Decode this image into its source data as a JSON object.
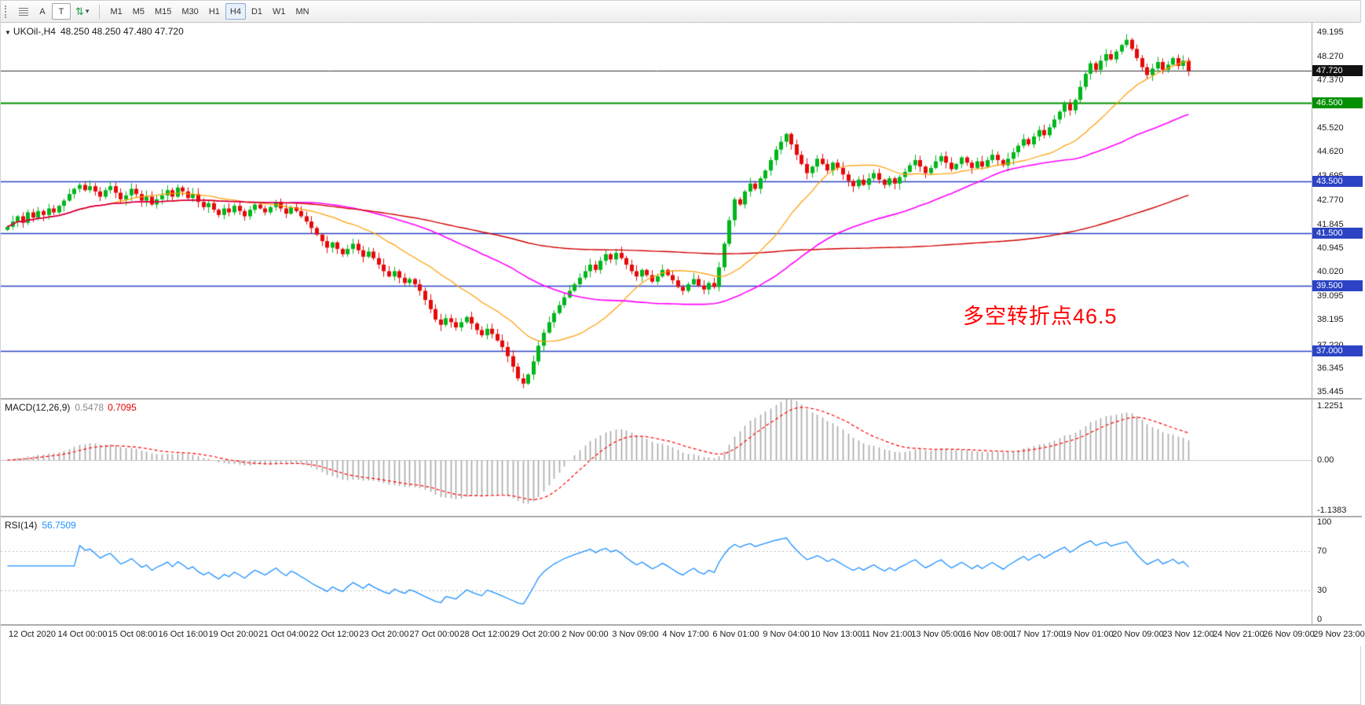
{
  "toolbar": {
    "tools": [
      {
        "label": "A"
      },
      {
        "label": "T"
      }
    ],
    "timeframes": [
      {
        "label": "M1",
        "active": false
      },
      {
        "label": "M5",
        "active": false
      },
      {
        "label": "M15",
        "active": false
      },
      {
        "label": "M30",
        "active": false
      },
      {
        "label": "H1",
        "active": false
      },
      {
        "label": "H4",
        "active": true
      },
      {
        "label": "D1",
        "active": false
      },
      {
        "label": "W1",
        "active": false
      },
      {
        "label": "MN",
        "active": false
      }
    ]
  },
  "chart": {
    "symbol_tf": "UKOil-,H4",
    "ohlc": "48.250 48.250 47.480 47.720"
  },
  "chart_data": {
    "type": "candlestick",
    "symbol": "UKOil",
    "timeframe": "H4",
    "title": "UKOil-,H4 48.250 48.250 47.480 47.720",
    "price_range": [
      35.2,
      49.55
    ],
    "current_price": 47.72,
    "current_price_label": "47.720",
    "current_price_color": "#333333",
    "colors": {
      "up": "#00b61b",
      "down": "#e60a0a"
    },
    "closes": [
      41.75,
      41.95,
      42.15,
      41.9,
      42.3,
      42.1,
      42.35,
      42.2,
      42.45,
      42.3,
      42.55,
      42.75,
      43.0,
      43.2,
      43.35,
      43.15,
      43.3,
      43.1,
      42.9,
      43.15,
      43.3,
      43.05,
      42.8,
      42.95,
      43.2,
      43.0,
      42.75,
      42.9,
      42.6,
      42.8,
      42.95,
      43.15,
      42.9,
      43.25,
      43.1,
      42.85,
      43.0,
      42.7,
      42.5,
      42.65,
      42.4,
      42.2,
      42.45,
      42.3,
      42.55,
      42.35,
      42.15,
      42.4,
      42.6,
      42.45,
      42.3,
      42.5,
      42.7,
      42.45,
      42.25,
      42.5,
      42.35,
      42.15,
      41.95,
      41.7,
      41.45,
      41.2,
      40.95,
      41.15,
      40.9,
      40.7,
      40.9,
      41.1,
      40.85,
      40.6,
      40.8,
      40.55,
      40.3,
      40.05,
      39.85,
      40.05,
      39.8,
      39.6,
      39.75,
      39.55,
      39.3,
      38.95,
      38.6,
      38.2,
      38.0,
      38.25,
      38.1,
      37.9,
      38.1,
      38.3,
      38.05,
      37.8,
      37.6,
      37.85,
      37.65,
      37.4,
      37.15,
      36.8,
      36.4,
      35.95,
      35.75,
      36.1,
      36.6,
      37.2,
      37.7,
      38.1,
      38.45,
      38.75,
      39.05,
      39.3,
      39.55,
      39.8,
      40.05,
      40.3,
      40.1,
      40.45,
      40.7,
      40.5,
      40.75,
      40.55,
      40.3,
      40.05,
      39.85,
      40.1,
      39.9,
      39.65,
      39.85,
      40.1,
      39.9,
      39.7,
      39.45,
      39.3,
      39.55,
      39.75,
      39.5,
      39.35,
      39.6,
      39.45,
      40.2,
      41.1,
      42.0,
      42.8,
      42.6,
      43.1,
      43.4,
      43.2,
      43.6,
      43.9,
      44.3,
      44.7,
      45.0,
      45.3,
      44.9,
      44.5,
      44.15,
      43.8,
      44.05,
      44.35,
      44.15,
      43.9,
      44.2,
      44.0,
      43.75,
      43.5,
      43.3,
      43.55,
      43.35,
      43.6,
      43.8,
      43.55,
      43.35,
      43.6,
      43.4,
      43.65,
      43.85,
      44.1,
      44.3,
      44.05,
      43.8,
      44.0,
      44.25,
      44.45,
      44.2,
      43.95,
      44.15,
      44.4,
      44.2,
      44.0,
      44.25,
      44.05,
      44.3,
      44.5,
      44.3,
      44.1,
      44.35,
      44.6,
      44.85,
      45.1,
      44.9,
      45.2,
      45.45,
      45.25,
      45.55,
      45.85,
      46.15,
      46.45,
      46.2,
      46.6,
      47.1,
      47.6,
      48.0,
      47.75,
      48.1,
      48.35,
      48.15,
      48.45,
      48.7,
      48.9,
      48.55,
      48.2,
      47.85,
      47.55,
      47.8,
      48.05,
      47.75,
      47.95,
      48.2,
      47.9,
      48.1,
      47.72
    ],
    "moving_averages": [
      {
        "period": 21,
        "color": "#ff9d00",
        "width": 1.2
      },
      {
        "period": 55,
        "color": "#ff00ff",
        "width": 1.6
      },
      {
        "period": 140,
        "color": "#d00000",
        "width": 1.4
      }
    ],
    "levels": [
      {
        "value": 46.5,
        "label": "46.500",
        "color": "#009000",
        "width": 2
      },
      {
        "value": 43.5,
        "label": "43.500",
        "color": "#2b43c4",
        "width": 1.5
      },
      {
        "value": 41.5,
        "label": "41.500",
        "color": "#2b43c4",
        "width": 1.5
      },
      {
        "value": 39.5,
        "label": "39.500",
        "color": "#2b43c4",
        "width": 1.5
      },
      {
        "value": 37.0,
        "label": "37.000",
        "color": "#2b43c4",
        "width": 1.5
      }
    ],
    "y_axis_labels": [
      "49.195",
      "48.270",
      "47.370",
      "45.520",
      "44.620",
      "43.695",
      "42.770",
      "41.845",
      "40.945",
      "40.020",
      "39.095",
      "38.195",
      "37.220",
      "36.345",
      "35.445"
    ],
    "x_labels": [
      "12 Oct 2020",
      "14 Oct 00:00",
      "15 Oct 08:00",
      "16 Oct 16:00",
      "19 Oct 20:00",
      "21 Oct 04:00",
      "22 Oct 12:00",
      "23 Oct 20:00",
      "27 Oct 00:00",
      "28 Oct 12:00",
      "29 Oct 20:00",
      "2 Nov 00:00",
      "3 Nov 09:00",
      "4 Nov 17:00",
      "6 Nov 01:00",
      "9 Nov 04:00",
      "10 Nov 13:00",
      "11 Nov 21:00",
      "13 Nov 05:00",
      "16 Nov 08:00",
      "17 Nov 17:00",
      "19 Nov 01:00",
      "20 Nov 09:00",
      "23 Nov 12:00",
      "24 Nov 21:00",
      "26 Nov 09:00",
      "29 Nov 23:00"
    ],
    "annotation": {
      "text": "多空转折点46.5",
      "color": "#ff0000"
    },
    "macd": {
      "label": "MACD(12,26,9)",
      "value_main": "0.5478",
      "value_signal": "0.7095",
      "params": [
        12,
        26,
        9
      ],
      "axis": [
        "1.2251",
        "0.00",
        "-1.1383"
      ],
      "range": [
        -1.25,
        1.35
      ],
      "hist_color": "#a9a9a9",
      "signal_color": "#ff0000"
    },
    "rsi": {
      "label": "RSI(14)",
      "value": "56.7509",
      "period": 14,
      "axis": [
        "100",
        "70",
        "30",
        "0"
      ],
      "levels": [
        70,
        30
      ],
      "color": "#1e90ff"
    }
  }
}
